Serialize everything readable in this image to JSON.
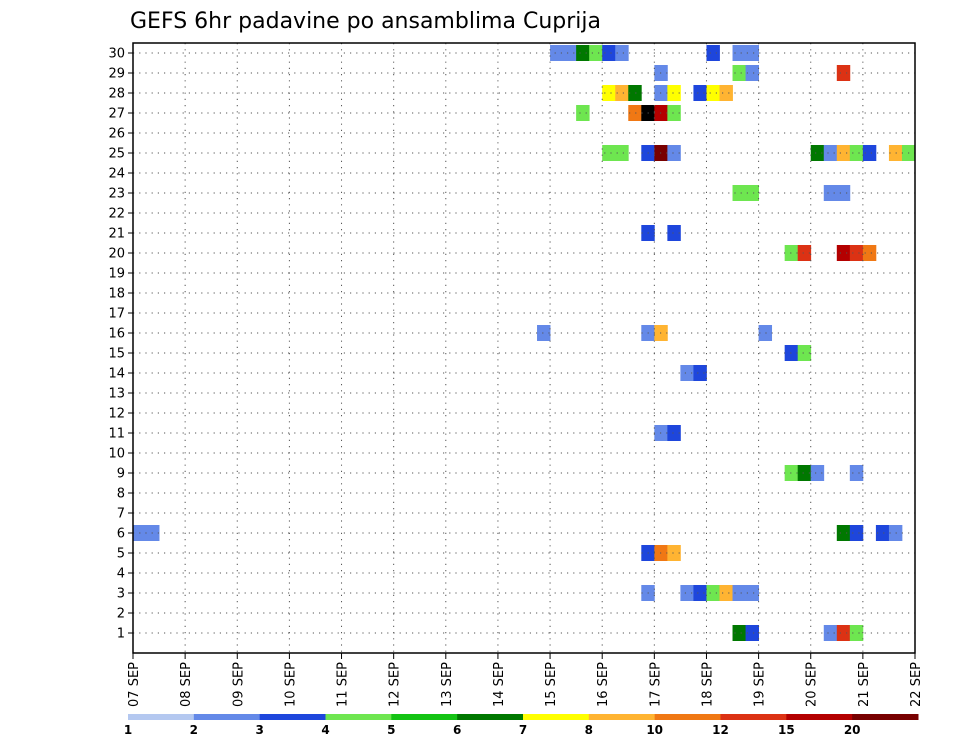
{
  "chart_data": {
    "type": "heatmap",
    "title": "GEFS 6hr padavine po ansamblima Cuprija",
    "xlabel": "",
    "ylabel": "",
    "x_tick_labels": [
      "07 SEP",
      "08 SEP",
      "09 SEP",
      "10 SEP",
      "11 SEP",
      "12 SEP",
      "13 SEP",
      "14 SEP",
      "15 SEP",
      "16 SEP",
      "17 SEP",
      "18 SEP",
      "19 SEP",
      "20 SEP",
      "21 SEP",
      "22 SEP"
    ],
    "xlim": [
      0,
      15
    ],
    "y_ticks": [
      1,
      2,
      3,
      4,
      5,
      6,
      7,
      8,
      9,
      10,
      11,
      12,
      13,
      14,
      15,
      16,
      17,
      18,
      19,
      20,
      21,
      22,
      23,
      24,
      25,
      26,
      27,
      28,
      29,
      30
    ],
    "ylim": [
      0,
      30.5
    ],
    "grid": true,
    "colorbar": {
      "labels": [
        "1",
        "2",
        "3",
        "4",
        "5",
        "6",
        "7",
        "8",
        "10",
        "12",
        "15",
        "20"
      ],
      "colors": [
        "#b4c8f0",
        "#6489e8",
        "#1e46dc",
        "#6ee650",
        "#14c314",
        "#007800",
        "#ffff00",
        "#ffb432",
        "#f07814",
        "#dc3214",
        "#b40000",
        "#780000"
      ]
    },
    "cells": [
      [
        7.0,
        6,
        1
      ],
      [
        7.25,
        6,
        1
      ],
      [
        15.0,
        30,
        1
      ],
      [
        15.25,
        30,
        1
      ],
      [
        15.5,
        30,
        5
      ],
      [
        15.75,
        30,
        3
      ],
      [
        16.0,
        30,
        2
      ],
      [
        16.25,
        30,
        1
      ],
      [
        18.0,
        30,
        2
      ],
      [
        18.5,
        30,
        1
      ],
      [
        18.75,
        30,
        1
      ],
      [
        17.0,
        29,
        1
      ],
      [
        18.5,
        29,
        3
      ],
      [
        18.75,
        29,
        1
      ],
      [
        20.5,
        29,
        9
      ],
      [
        16.0,
        28,
        6
      ],
      [
        16.25,
        28,
        7
      ],
      [
        16.5,
        28,
        5
      ],
      [
        17.0,
        28,
        1
      ],
      [
        17.25,
        28,
        6
      ],
      [
        17.75,
        28,
        2
      ],
      [
        18.0,
        28,
        6
      ],
      [
        18.25,
        28,
        7
      ],
      [
        15.5,
        27,
        3
      ],
      [
        16.5,
        27,
        8
      ],
      [
        16.75,
        27,
        12
      ],
      [
        17.0,
        27,
        10
      ],
      [
        17.25,
        27,
        3
      ],
      [
        16.0,
        25,
        3
      ],
      [
        16.25,
        25,
        3
      ],
      [
        16.75,
        25,
        2
      ],
      [
        17.0,
        25,
        11
      ],
      [
        17.25,
        25,
        1
      ],
      [
        20.0,
        25,
        5
      ],
      [
        20.25,
        25,
        1
      ],
      [
        20.5,
        25,
        7
      ],
      [
        20.75,
        25,
        3
      ],
      [
        21.0,
        25,
        2
      ],
      [
        21.5,
        25,
        7
      ],
      [
        21.75,
        25,
        3
      ],
      [
        18.5,
        23,
        3
      ],
      [
        18.75,
        23,
        3
      ],
      [
        20.25,
        23,
        1
      ],
      [
        20.5,
        23,
        1
      ],
      [
        16.75,
        21,
        2
      ],
      [
        17.25,
        21,
        2
      ],
      [
        19.5,
        20,
        3
      ],
      [
        19.75,
        20,
        9
      ],
      [
        20.5,
        20,
        10
      ],
      [
        20.75,
        20,
        9
      ],
      [
        21.0,
        20,
        8
      ],
      [
        14.75,
        16,
        1
      ],
      [
        16.75,
        16,
        1
      ],
      [
        17.0,
        16,
        7
      ],
      [
        19.0,
        16,
        1
      ],
      [
        19.5,
        15,
        2
      ],
      [
        19.75,
        15,
        3
      ],
      [
        17.5,
        14,
        1
      ],
      [
        17.75,
        14,
        2
      ],
      [
        17.0,
        11,
        1
      ],
      [
        17.25,
        11,
        2
      ],
      [
        19.5,
        9,
        3
      ],
      [
        19.75,
        9,
        5
      ],
      [
        20.0,
        9,
        1
      ],
      [
        20.75,
        9,
        1
      ],
      [
        20.5,
        6,
        5
      ],
      [
        20.75,
        6,
        2
      ],
      [
        21.25,
        6,
        2
      ],
      [
        21.5,
        6,
        1
      ],
      [
        16.75,
        5,
        2
      ],
      [
        17.0,
        5,
        8
      ],
      [
        17.25,
        5,
        7
      ],
      [
        16.75,
        3,
        1
      ],
      [
        17.5,
        3,
        1
      ],
      [
        17.75,
        3,
        2
      ],
      [
        18.0,
        3,
        3
      ],
      [
        18.25,
        3,
        7
      ],
      [
        18.5,
        3,
        1
      ],
      [
        18.75,
        3,
        1
      ],
      [
        18.5,
        1,
        5
      ],
      [
        18.75,
        1,
        2
      ],
      [
        20.25,
        1,
        1
      ],
      [
        20.5,
        1,
        9
      ],
      [
        20.75,
        1,
        3
      ]
    ]
  }
}
